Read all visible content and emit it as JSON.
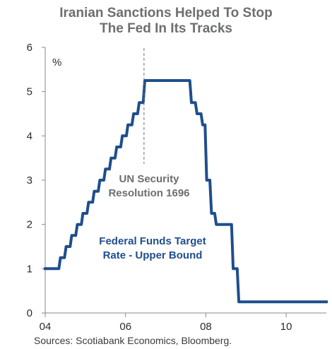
{
  "chart_data": {
    "type": "line",
    "title_lines": [
      "Iranian Sanctions Helped To Stop",
      "The Fed In Its Tracks"
    ],
    "unit_label": "%",
    "xlim": [
      2004,
      2011.0
    ],
    "ylim": [
      0,
      6
    ],
    "x_ticks": [
      2004,
      2006,
      2008,
      2010
    ],
    "x_tick_labels": [
      "04",
      "06",
      "08",
      "10"
    ],
    "y_ticks": [
      0,
      1,
      2,
      3,
      4,
      5,
      6
    ],
    "y_tick_labels": [
      "0",
      "1",
      "2",
      "3",
      "4",
      "5",
      "6"
    ],
    "grid": false,
    "series": [
      {
        "name": "Federal Funds Target Rate - Upper Bound",
        "color": "#1f4e8c",
        "x": [
          2004.0,
          2004.34,
          2004.38,
          2004.48,
          2004.52,
          2004.62,
          2004.66,
          2004.76,
          2004.8,
          2004.9,
          2004.94,
          2005.04,
          2005.08,
          2005.18,
          2005.22,
          2005.32,
          2005.36,
          2005.46,
          2005.5,
          2005.6,
          2005.64,
          2005.74,
          2005.78,
          2005.88,
          2005.92,
          2006.02,
          2006.06,
          2006.16,
          2006.2,
          2006.3,
          2006.34,
          2006.44,
          2006.48,
          2007.6,
          2007.64,
          2007.74,
          2007.78,
          2007.88,
          2007.92,
          2007.98,
          2008.02,
          2008.1,
          2008.14,
          2008.22,
          2008.26,
          2008.64,
          2008.68,
          2008.78,
          2008.82,
          2008.9,
          2008.94,
          2011.0
        ],
        "y": [
          1.0,
          1.0,
          1.25,
          1.25,
          1.5,
          1.5,
          1.75,
          1.75,
          2.0,
          2.0,
          2.25,
          2.25,
          2.5,
          2.5,
          2.75,
          2.75,
          3.0,
          3.0,
          3.25,
          3.25,
          3.5,
          3.5,
          3.75,
          3.75,
          4.0,
          4.0,
          4.25,
          4.25,
          4.5,
          4.5,
          4.75,
          4.75,
          5.25,
          5.25,
          4.75,
          4.75,
          4.5,
          4.5,
          4.25,
          4.25,
          3.0,
          3.0,
          2.25,
          2.25,
          2.0,
          2.0,
          1.0,
          1.0,
          0.25,
          0.25,
          0.25,
          0.25
        ]
      }
    ],
    "annotations": [
      {
        "lines": [
          "UN Security",
          "Resolution 1696"
        ],
        "x": 2006.46,
        "y_top": 5.25,
        "marker": "dashed-vertical-line"
      },
      {
        "lines": [
          "Federal Funds Target",
          "Rate - Upper Bound"
        ],
        "series_label": true
      }
    ]
  },
  "source": "Sources: Scotiabank Economics, Bloomberg."
}
